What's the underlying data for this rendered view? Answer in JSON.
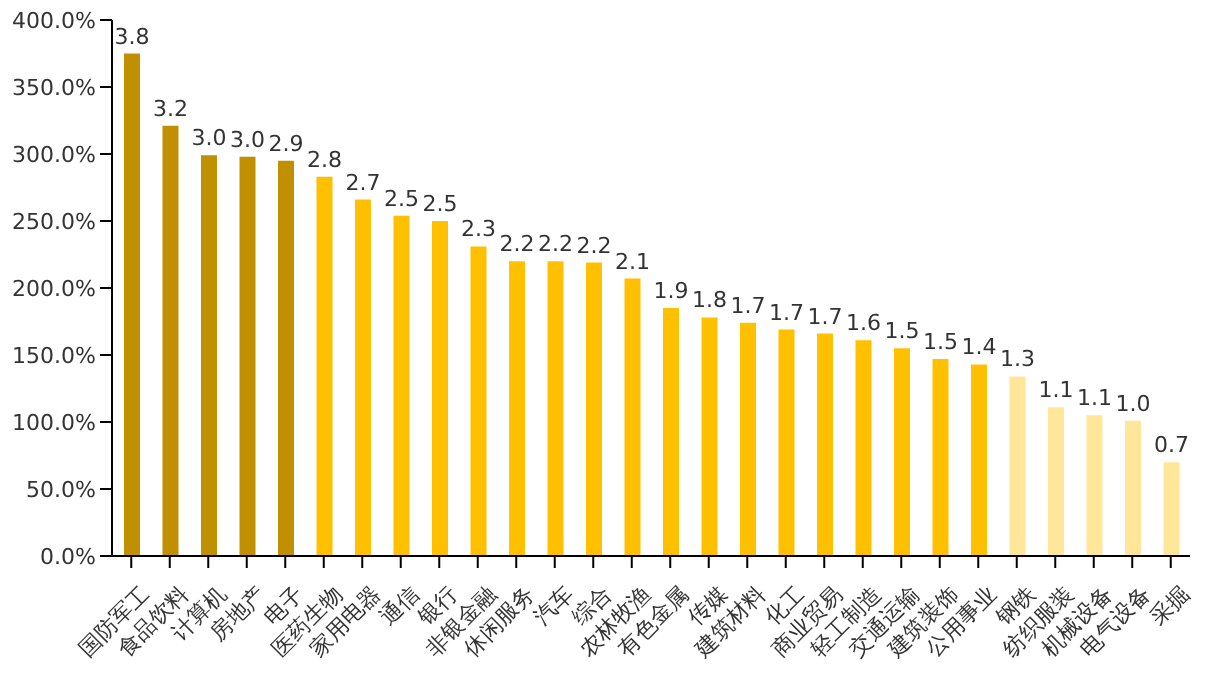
{
  "chart_data": {
    "type": "bar",
    "categories": [
      "国防军工",
      "食品饮料",
      "计算机",
      "房地产",
      "电子",
      "医药生物",
      "家用电器",
      "通信",
      "银行",
      "非银金融",
      "休闲服务",
      "汽车",
      "综合",
      "农林牧渔",
      "有色金属",
      "传媒",
      "建筑材料",
      "化工",
      "商业贸易",
      "轻工制造",
      "交通运输",
      "建筑装饰",
      "公用事业",
      "钢铁",
      "纺织服装",
      "机械设备",
      "电气设备",
      "采掘"
    ],
    "values": [
      375,
      321,
      299,
      298,
      295,
      283,
      266,
      254,
      250,
      231,
      220,
      220,
      219,
      207,
      185,
      178,
      174,
      169,
      166,
      161,
      155,
      147,
      143,
      134,
      111,
      105,
      101,
      70
    ],
    "colors": [
      "#c09000",
      "#c09000",
      "#c09000",
      "#c09000",
      "#c09000",
      "#ffc000",
      "#ffc000",
      "#ffc000",
      "#ffc000",
      "#ffc000",
      "#ffc000",
      "#ffc000",
      "#ffc000",
      "#ffc000",
      "#ffc000",
      "#ffc000",
      "#ffc000",
      "#ffc000",
      "#ffc000",
      "#ffc000",
      "#ffc000",
      "#ffc000",
      "#ffc000",
      "#ffe699",
      "#ffe699",
      "#ffe699",
      "#ffe699",
      "#ffe699"
    ],
    "annotations": [
      {
        "text": "3.8",
        "x": "国防军工",
        "y": 375
      },
      {
        "text": "3.2",
        "x": "食品饮料",
        "y": 321
      },
      {
        "text": "3.0",
        "x": "计算机",
        "y": 299
      },
      {
        "text": "3.0",
        "x": "房地产",
        "y": 298
      },
      {
        "text": "2.9",
        "x": "电子",
        "y": 295
      },
      {
        "text": "2.8",
        "x": "医药生物",
        "y": 283
      },
      {
        "text": "2.7",
        "x": "家用电器",
        "y": 266
      },
      {
        "text": "2.5",
        "x": "通信",
        "y": 254
      },
      {
        "text": "2.5",
        "x": "银行",
        "y": 250
      },
      {
        "text": "2.3",
        "x": "非银金融",
        "y": 231
      },
      {
        "text": "2.2",
        "x": "休闲服务",
        "y": 220
      },
      {
        "text": "2.2",
        "x": "汽车",
        "y": 220
      },
      {
        "text": "2.2",
        "x": "综合",
        "y": 219
      },
      {
        "text": "2.1",
        "x": "农林牧渔",
        "y": 207
      },
      {
        "text": "1.9",
        "x": "有色金属",
        "y": 185
      },
      {
        "text": "1.8",
        "x": "传媒",
        "y": 178
      },
      {
        "text": "1.7",
        "x": "建筑材料",
        "y": 174
      },
      {
        "text": "1.7",
        "x": "化工",
        "y": 169
      },
      {
        "text": "1.7",
        "x": "商业贸易",
        "y": 166
      },
      {
        "text": "1.6",
        "x": "轻工制造",
        "y": 161
      },
      {
        "text": "1.5",
        "x": "交通运输",
        "y": 155
      },
      {
        "text": "1.5",
        "x": "建筑装饰",
        "y": 147
      },
      {
        "text": "1.4",
        "x": "公用事业",
        "y": 143
      },
      {
        "text": "1.3",
        "x": "钢铁",
        "y": 134
      },
      {
        "text": "1.1",
        "x": "纺织服装",
        "y": 111
      },
      {
        "text": "1.1",
        "x": "机械设备",
        "y": 105
      },
      {
        "text": "1.0",
        "x": "电气设备",
        "y": 101
      },
      {
        "text": "0.7",
        "x": "采掘",
        "y": 70
      }
    ],
    "ylim": [
      0,
      400
    ],
    "yticks": [
      {
        "value": 0,
        "label": "0.0%"
      },
      {
        "value": 50,
        "label": "50.0%"
      },
      {
        "value": 100,
        "label": "100.0%"
      },
      {
        "value": 150,
        "label": "150.0%"
      },
      {
        "value": 200,
        "label": "200.0%"
      },
      {
        "value": 250,
        "label": "250.0%"
      },
      {
        "value": 300,
        "label": "300.0%"
      },
      {
        "value": 350,
        "label": "350.0%"
      },
      {
        "value": 400,
        "label": "400.0%"
      }
    ],
    "grid": false,
    "legend": false
  }
}
